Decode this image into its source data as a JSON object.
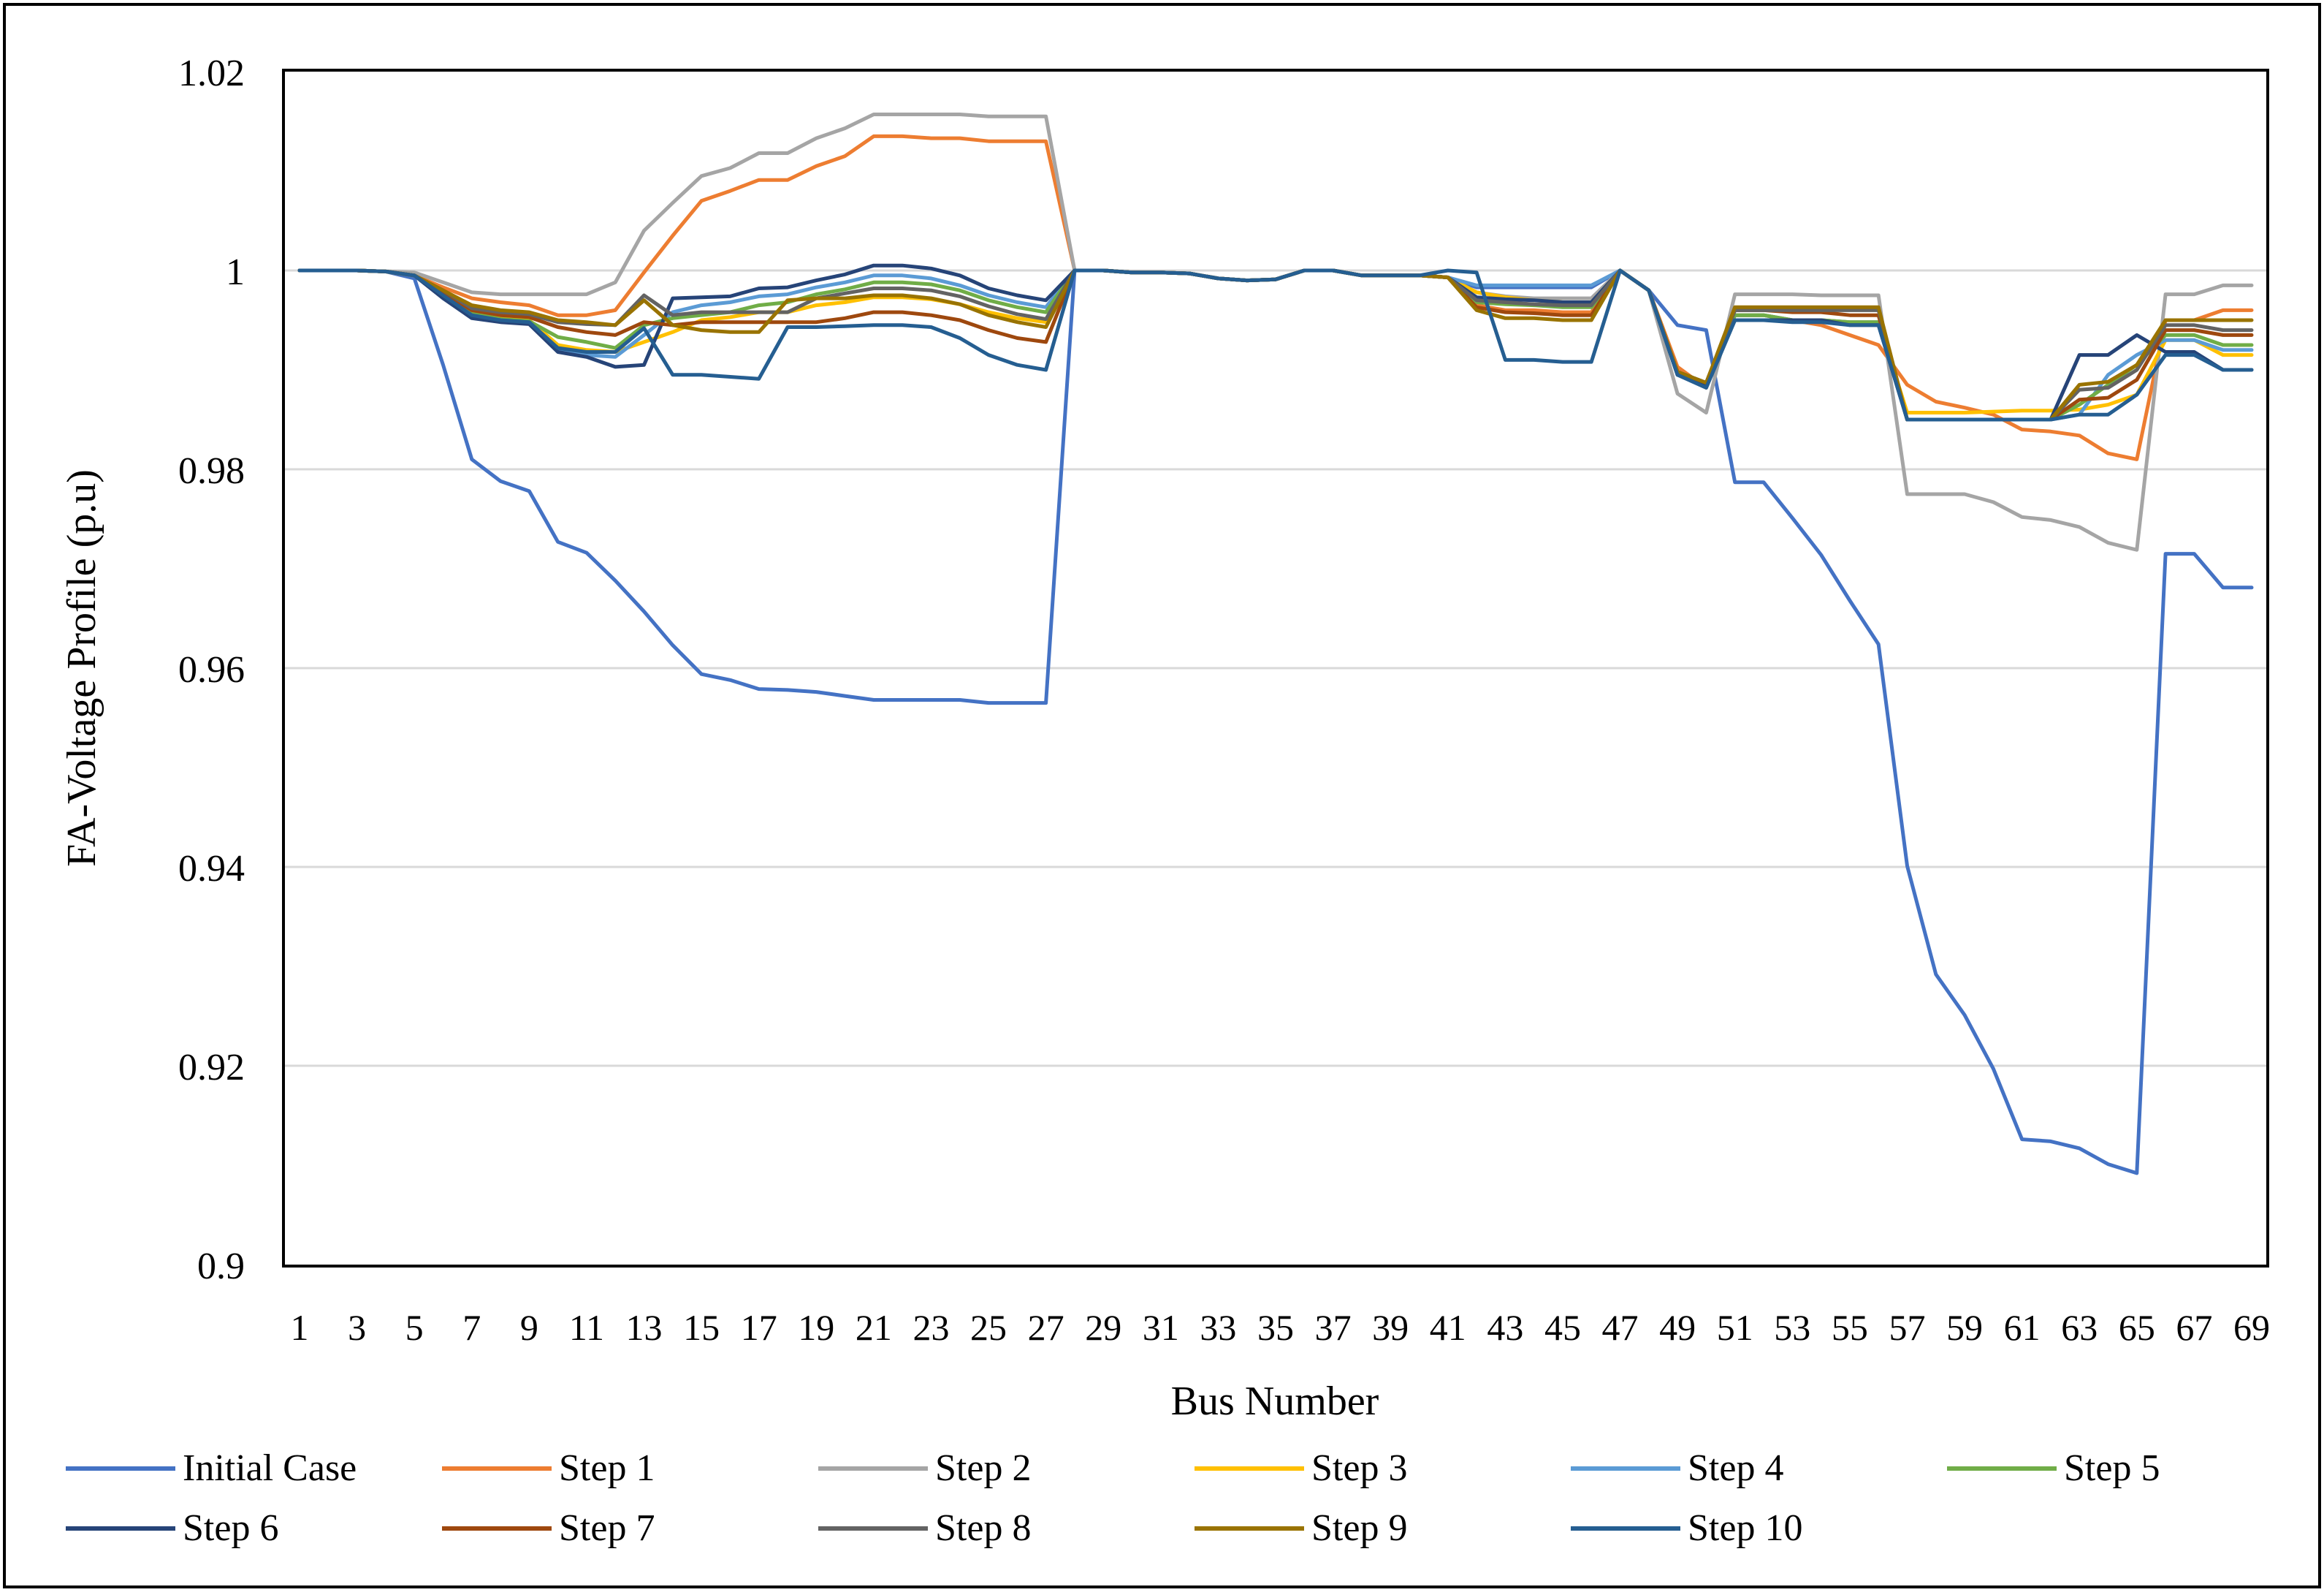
{
  "chart_data": {
    "type": "line",
    "title": "",
    "xlabel": "Bus Number",
    "ylabel": "FA-Voltage Profile (p.u)",
    "ylim": [
      0.9,
      1.02
    ],
    "yticks": [
      "0.9",
      "0.92",
      "0.94",
      "0.96",
      "0.98",
      "1",
      "1.02"
    ],
    "xticks": [
      "1",
      "3",
      "5",
      "7",
      "9",
      "11",
      "13",
      "15",
      "17",
      "19",
      "21",
      "23",
      "25",
      "27",
      "29",
      "31",
      "33",
      "35",
      "37",
      "39",
      "41",
      "43",
      "45",
      "47",
      "49",
      "51",
      "53",
      "55",
      "57",
      "59",
      "61",
      "63",
      "65",
      "67",
      "69"
    ],
    "grid": true,
    "legend_position": "bottom",
    "series": [
      {
        "name": "Initial Case",
        "color": "#4472C4",
        "values": [
          1.0,
          1.0,
          1.0,
          0.9999,
          0.9992,
          0.9905,
          0.981,
          0.9788,
          0.9778,
          0.9727,
          0.9716,
          0.9688,
          0.9657,
          0.9623,
          0.9594,
          0.9588,
          0.9579,
          0.9578,
          0.9576,
          0.9572,
          0.9568,
          0.9568,
          0.9568,
          0.9568,
          0.9565,
          0.9565,
          0.9565,
          1.0,
          1.0,
          0.9998,
          0.9998,
          0.9997,
          0.9992,
          0.999,
          0.9991,
          1.0,
          1.0,
          0.9995,
          0.9995,
          0.9995,
          0.9993,
          0.9983,
          0.9983,
          0.9983,
          0.9983,
          0.9983,
          1.0,
          0.998,
          0.9945,
          0.994,
          0.9787,
          0.9787,
          0.9751,
          0.9714,
          0.9668,
          0.9624,
          0.9401,
          0.9292,
          0.9251,
          0.9197,
          0.9126,
          0.9124,
          0.9117,
          0.9101,
          0.9092,
          0.9715,
          0.9715,
          0.9681,
          0.9681
        ]
      },
      {
        "name": "Step 1",
        "color": "#ED7D31",
        "values": [
          1.0,
          1.0,
          1.0,
          0.9999,
          0.9995,
          0.9983,
          0.9972,
          0.9968,
          0.9965,
          0.9955,
          0.9955,
          0.996,
          0.9998,
          1.0035,
          1.007,
          1.008,
          1.0091,
          1.0091,
          1.0105,
          1.0115,
          1.0135,
          1.0135,
          1.0133,
          1.0133,
          1.013,
          1.013,
          1.013,
          1.0,
          1.0,
          0.9998,
          0.9998,
          0.9997,
          0.9992,
          0.999,
          0.9991,
          1.0,
          1.0,
          0.9995,
          0.9995,
          0.9995,
          0.9993,
          0.9965,
          0.996,
          0.996,
          0.9958,
          0.9958,
          1.0,
          0.998,
          0.9903,
          0.9882,
          0.9955,
          0.9955,
          0.995,
          0.9945,
          0.9935,
          0.9925,
          0.9885,
          0.9868,
          0.9862,
          0.9855,
          0.984,
          0.9838,
          0.9834,
          0.9816,
          0.981,
          0.995,
          0.995,
          0.996,
          0.996
        ]
      },
      {
        "name": "Step 2",
        "color": "#A5A5A5",
        "values": [
          1.0,
          1.0,
          1.0,
          0.9999,
          0.9998,
          0.9988,
          0.9978,
          0.9976,
          0.9976,
          0.9976,
          0.9976,
          0.9988,
          1.004,
          1.0068,
          1.0095,
          1.0103,
          1.0118,
          1.0118,
          1.0133,
          1.0143,
          1.0157,
          1.0157,
          1.0157,
          1.0157,
          1.0155,
          1.0155,
          1.0155,
          1.0,
          1.0,
          0.9998,
          0.9998,
          0.9997,
          0.9992,
          0.999,
          0.9991,
          1.0,
          1.0,
          0.9995,
          0.9995,
          0.9995,
          0.9993,
          0.9978,
          0.9974,
          0.9972,
          0.9972,
          0.9972,
          1.0,
          0.998,
          0.9876,
          0.9857,
          0.9976,
          0.9976,
          0.9976,
          0.9975,
          0.9975,
          0.9975,
          0.9775,
          0.9775,
          0.9775,
          0.9767,
          0.9752,
          0.9749,
          0.9742,
          0.9726,
          0.9719,
          0.9976,
          0.9976,
          0.9985,
          0.9985
        ]
      },
      {
        "name": "Step 3",
        "color": "#FFC000",
        "values": [
          1.0,
          1.0,
          1.0,
          0.9999,
          0.9995,
          0.9978,
          0.9958,
          0.9952,
          0.995,
          0.9925,
          0.992,
          0.9918,
          0.9928,
          0.9938,
          0.995,
          0.9953,
          0.9958,
          0.9958,
          0.9965,
          0.9968,
          0.9973,
          0.9973,
          0.9971,
          0.9966,
          0.9958,
          0.9952,
          0.9948,
          1.0,
          1.0,
          0.9998,
          0.9998,
          0.9997,
          0.9992,
          0.999,
          0.9991,
          1.0,
          1.0,
          0.9995,
          0.9995,
          0.9995,
          0.9993,
          0.9978,
          0.9973,
          0.997,
          0.9968,
          0.9968,
          1.0,
          0.998,
          0.9895,
          0.9885,
          0.9955,
          0.9955,
          0.995,
          0.995,
          0.9948,
          0.9948,
          0.9857,
          0.9857,
          0.9857,
          0.9858,
          0.9859,
          0.9859,
          0.986,
          0.9865,
          0.9875,
          0.993,
          0.993,
          0.9915,
          0.9915
        ]
      },
      {
        "name": "Step 4",
        "color": "#5B9BD5",
        "values": [
          1.0,
          1.0,
          1.0,
          0.9999,
          0.9995,
          0.9975,
          0.9955,
          0.995,
          0.9948,
          0.992,
          0.9915,
          0.9913,
          0.9935,
          0.9958,
          0.9965,
          0.9968,
          0.9974,
          0.9976,
          0.9983,
          0.9988,
          0.9995,
          0.9995,
          0.9992,
          0.9985,
          0.9975,
          0.9968,
          0.9963,
          1.0,
          1.0,
          0.9998,
          0.9998,
          0.9997,
          0.9992,
          0.999,
          0.9991,
          1.0,
          1.0,
          0.9995,
          0.9995,
          0.9995,
          0.9993,
          0.9985,
          0.9985,
          0.9985,
          0.9985,
          0.9985,
          1.0,
          0.998,
          0.9895,
          0.9885,
          0.9955,
          0.9955,
          0.995,
          0.995,
          0.9948,
          0.9948,
          0.985,
          0.985,
          0.985,
          0.985,
          0.985,
          0.985,
          0.9855,
          0.9895,
          0.9915,
          0.993,
          0.993,
          0.992,
          0.992
        ]
      },
      {
        "name": "Step 5",
        "color": "#70AD47",
        "values": [
          1.0,
          1.0,
          1.0,
          0.9999,
          0.9995,
          0.9977,
          0.9957,
          0.9951,
          0.9949,
          0.9933,
          0.9928,
          0.9922,
          0.9945,
          0.9952,
          0.9955,
          0.9958,
          0.9965,
          0.9968,
          0.9976,
          0.9981,
          0.9988,
          0.9988,
          0.9986,
          0.998,
          0.997,
          0.9963,
          0.9958,
          1.0,
          1.0,
          0.9998,
          0.9998,
          0.9997,
          0.9992,
          0.999,
          0.9991,
          1.0,
          1.0,
          0.9995,
          0.9995,
          0.9995,
          0.9993,
          0.9968,
          0.9966,
          0.9965,
          0.9963,
          0.9963,
          1.0,
          0.998,
          0.9898,
          0.9887,
          0.9955,
          0.9955,
          0.995,
          0.995,
          0.9948,
          0.9948,
          0.985,
          0.985,
          0.985,
          0.985,
          0.985,
          0.985,
          0.9865,
          0.9885,
          0.9905,
          0.9935,
          0.9935,
          0.9925,
          0.9925
        ]
      },
      {
        "name": "Step 6",
        "color": "#264478",
        "values": [
          1.0,
          1.0,
          1.0,
          0.9999,
          0.9995,
          0.9972,
          0.9952,
          0.9948,
          0.9946,
          0.9918,
          0.9913,
          0.9903,
          0.9905,
          0.9972,
          0.9973,
          0.9974,
          0.9982,
          0.9983,
          0.999,
          0.9996,
          1.0005,
          1.0005,
          1.0002,
          0.9995,
          0.9982,
          0.9975,
          0.997,
          1.0,
          1.0,
          0.9998,
          0.9998,
          0.9997,
          0.9992,
          0.999,
          0.9991,
          1.0,
          1.0,
          0.9995,
          0.9995,
          0.9995,
          0.9993,
          0.9973,
          0.9971,
          0.997,
          0.9968,
          0.9968,
          1.0,
          0.998,
          0.9895,
          0.9885,
          0.995,
          0.995,
          0.995,
          0.995,
          0.9945,
          0.9945,
          0.985,
          0.985,
          0.985,
          0.985,
          0.985,
          0.985,
          0.9915,
          0.9915,
          0.9935,
          0.9918,
          0.9918,
          0.99,
          0.99
        ]
      },
      {
        "name": "Step 7",
        "color": "#9E480E",
        "values": [
          1.0,
          1.0,
          1.0,
          0.9999,
          0.9995,
          0.9978,
          0.996,
          0.9955,
          0.9953,
          0.9943,
          0.9938,
          0.9935,
          0.9948,
          0.9945,
          0.9948,
          0.9948,
          0.9948,
          0.9948,
          0.9948,
          0.9952,
          0.9958,
          0.9958,
          0.9955,
          0.995,
          0.994,
          0.9932,
          0.9928,
          1.0,
          1.0,
          0.9998,
          0.9998,
          0.9997,
          0.9992,
          0.999,
          0.9991,
          1.0,
          1.0,
          0.9995,
          0.9995,
          0.9995,
          0.9993,
          0.9963,
          0.9958,
          0.9957,
          0.9955,
          0.9955,
          1.0,
          0.998,
          0.9898,
          0.9887,
          0.996,
          0.996,
          0.9958,
          0.9958,
          0.9955,
          0.9955,
          0.985,
          0.985,
          0.985,
          0.985,
          0.985,
          0.985,
          0.987,
          0.9872,
          0.989,
          0.994,
          0.994,
          0.9935,
          0.9935
        ]
      },
      {
        "name": "Step 8",
        "color": "#636363",
        "values": [
          1.0,
          1.0,
          1.0,
          0.9999,
          0.9995,
          0.998,
          0.9962,
          0.9958,
          0.9956,
          0.9948,
          0.9946,
          0.9945,
          0.9975,
          0.9955,
          0.9958,
          0.9958,
          0.9958,
          0.9958,
          0.9972,
          0.9977,
          0.9982,
          0.9982,
          0.998,
          0.9974,
          0.9964,
          0.9956,
          0.9951,
          1.0,
          1.0,
          0.9998,
          0.9998,
          0.9997,
          0.9992,
          0.999,
          0.9991,
          1.0,
          1.0,
          0.9995,
          0.9995,
          0.9995,
          0.9993,
          0.997,
          0.9968,
          0.9966,
          0.9965,
          0.9965,
          1.0,
          0.998,
          0.9898,
          0.9887,
          0.996,
          0.996,
          0.996,
          0.996,
          0.996,
          0.996,
          0.985,
          0.985,
          0.985,
          0.985,
          0.985,
          0.985,
          0.988,
          0.9882,
          0.99,
          0.9945,
          0.9945,
          0.994,
          0.994
        ]
      },
      {
        "name": "Step 9",
        "color": "#997300",
        "values": [
          1.0,
          1.0,
          1.0,
          0.9999,
          0.9995,
          0.998,
          0.9965,
          0.996,
          0.9958,
          0.995,
          0.9948,
          0.9945,
          0.997,
          0.9945,
          0.994,
          0.9938,
          0.9938,
          0.997,
          0.9972,
          0.9972,
          0.9975,
          0.9975,
          0.9972,
          0.9966,
          0.9955,
          0.9948,
          0.9943,
          1.0,
          1.0,
          0.9998,
          0.9998,
          0.9997,
          0.9992,
          0.999,
          0.9991,
          1.0,
          1.0,
          0.9995,
          0.9995,
          0.9995,
          0.9993,
          0.996,
          0.9952,
          0.9952,
          0.995,
          0.995,
          1.0,
          0.998,
          0.9898,
          0.9887,
          0.9963,
          0.9963,
          0.9963,
          0.9963,
          0.9963,
          0.9963,
          0.985,
          0.985,
          0.985,
          0.985,
          0.985,
          0.985,
          0.9885,
          0.9888,
          0.9905,
          0.995,
          0.995,
          0.995,
          0.995
        ]
      },
      {
        "name": "Step 10",
        "color": "#255E91",
        "values": [
          1.0,
          1.0,
          1.0,
          0.9999,
          0.9995,
          0.9975,
          0.9955,
          0.995,
          0.9948,
          0.9922,
          0.9918,
          0.9918,
          0.9942,
          0.9895,
          0.9895,
          0.9893,
          0.9891,
          0.9943,
          0.9943,
          0.9944,
          0.9945,
          0.9945,
          0.9943,
          0.9932,
          0.9915,
          0.9905,
          0.99,
          1.0,
          1.0,
          0.9998,
          0.9998,
          0.9997,
          0.9992,
          0.999,
          0.9991,
          1.0,
          1.0,
          0.9995,
          0.9995,
          0.9995,
          1.0,
          0.9998,
          0.991,
          0.991,
          0.9908,
          0.9908,
          1.0,
          0.998,
          0.9895,
          0.9882,
          0.995,
          0.995,
          0.9948,
          0.9948,
          0.9945,
          0.9945,
          0.985,
          0.985,
          0.985,
          0.985,
          0.985,
          0.985,
          0.9855,
          0.9855,
          0.9875,
          0.9915,
          0.9915,
          0.99,
          0.99
        ]
      }
    ]
  }
}
